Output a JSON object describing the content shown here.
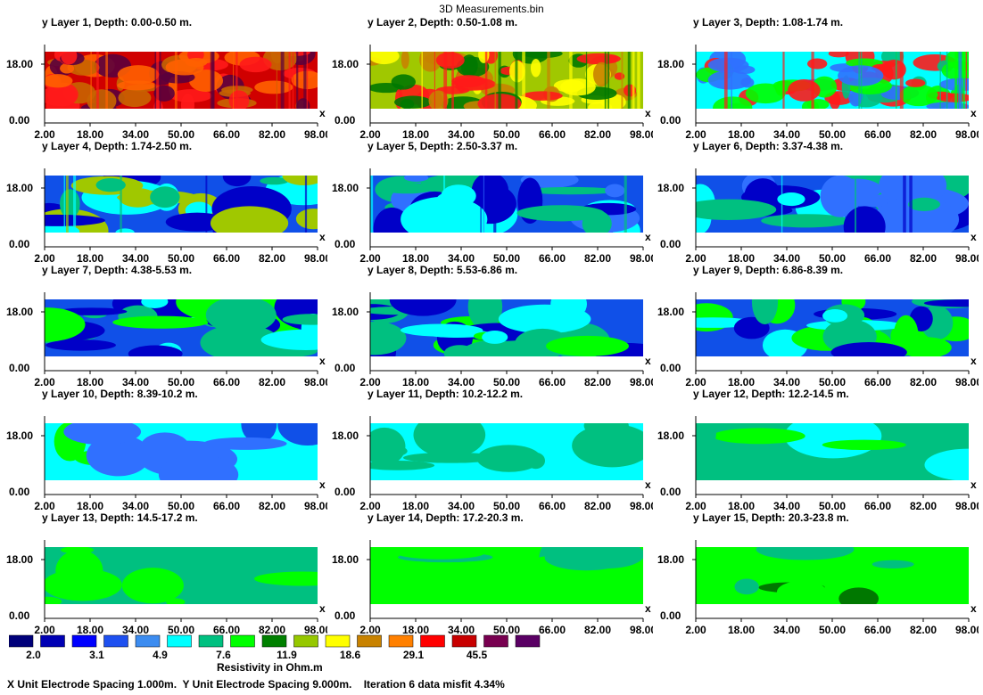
{
  "title": "3D Measurements.bin",
  "y_axis": {
    "label": "y",
    "ticks": [
      "18.00",
      "0.00"
    ]
  },
  "x_axis": {
    "label": "x",
    "ticks": [
      "2.00",
      "18.00",
      "34.00",
      "50.00",
      "66.00",
      "82.00",
      "98.00"
    ]
  },
  "panels": [
    {
      "title": "y Layer 1, Depth: 0.00-0.50 m.",
      "palette": [
        "#d00000",
        "#ff1a1a",
        "#ff6000",
        "#c86400",
        "#5a003c"
      ]
    },
    {
      "title": "y Layer 2, Depth: 0.50-1.08 m.",
      "palette": [
        "#a0c800",
        "#ffff00",
        "#007800",
        "#c88200",
        "#ff1a1a"
      ]
    },
    {
      "title": "y Layer 3, Depth: 1.08-1.74 m.",
      "palette": [
        "#00ffff",
        "#00c080",
        "#3070ff",
        "#00ff00",
        "#ff1a1a"
      ]
    },
    {
      "title": "y Layer 4, Depth: 1.74-2.50 m.",
      "palette": [
        "#1050e8",
        "#00ffff",
        "#00c080",
        "#0000c8",
        "#a0c800"
      ]
    },
    {
      "title": "y Layer 5, Depth: 2.50-3.37 m.",
      "palette": [
        "#1050e8",
        "#00ffff",
        "#0000c8",
        "#00c080",
        "#3070ff"
      ]
    },
    {
      "title": "y Layer 6, Depth: 3.37-4.38 m.",
      "palette": [
        "#1050e8",
        "#00ffff",
        "#0000c8",
        "#00c080",
        "#3070ff"
      ]
    },
    {
      "title": "y Layer 7, Depth: 4.38-5.53 m.",
      "palette": [
        "#1050e8",
        "#00ffff",
        "#0000c8",
        "#00c080",
        "#00ff00"
      ]
    },
    {
      "title": "y Layer 8, Depth: 5.53-6.86 m.",
      "palette": [
        "#1050e8",
        "#00ffff",
        "#0000c8",
        "#00c080",
        "#00ff00"
      ]
    },
    {
      "title": "y Layer 9, Depth: 6.86-8.39 m.",
      "palette": [
        "#1050e8",
        "#00ffff",
        "#0000c8",
        "#00c080",
        "#00ff00"
      ]
    },
    {
      "title": "y Layer 10, Depth: 8.39-10.2 m.",
      "palette": [
        "#00ffff",
        "#1050e8",
        "#00c080",
        "#00ff00",
        "#3070ff"
      ]
    },
    {
      "title": "y Layer 11, Depth: 10.2-12.2 m.",
      "palette": [
        "#00ffff",
        "#00c080",
        "#00c080",
        "#00ffff",
        "#00c080"
      ]
    },
    {
      "title": "y Layer 12, Depth: 12.2-14.5 m.",
      "palette": [
        "#00c080",
        "#00ffff",
        "#00c080",
        "#00ff00",
        "#00c080"
      ]
    },
    {
      "title": "y Layer 13, Depth: 14.5-17.2 m.",
      "palette": [
        "#00c080",
        "#00ff00",
        "#00c080",
        "#00ff00",
        "#00c080"
      ]
    },
    {
      "title": "y Layer 14, Depth: 17.2-20.3 m.",
      "palette": [
        "#00ff00",
        "#00c080",
        "#00ff00",
        "#00c080",
        "#00ff00"
      ]
    },
    {
      "title": "y Layer 15, Depth: 20.3-23.8 m.",
      "palette": [
        "#00ff00",
        "#00c080",
        "#00ff00",
        "#007800",
        "#00ff00"
      ]
    }
  ],
  "legend": {
    "title": "Resistivity in Ohm.m",
    "colors": [
      "#00007a",
      "#0000b4",
      "#0000ff",
      "#1e50f0",
      "#3c8cf0",
      "#00ffff",
      "#00c080",
      "#00ff00",
      "#008000",
      "#96c800",
      "#ffff00",
      "#c88200",
      "#ff8000",
      "#ff0000",
      "#c80000",
      "#780050",
      "#5a0064"
    ],
    "value_labels": [
      {
        "slot": 0,
        "text": "2.0"
      },
      {
        "slot": 2,
        "text": "3.1"
      },
      {
        "slot": 4,
        "text": "4.9"
      },
      {
        "slot": 6,
        "text": "7.6"
      },
      {
        "slot": 8,
        "text": "11.9"
      },
      {
        "slot": 10,
        "text": "18.6"
      },
      {
        "slot": 12,
        "text": "29.1"
      },
      {
        "slot": 14,
        "text": "45.5"
      }
    ]
  },
  "footer": "X Unit Electrode Spacing 1.000m.  Y Unit Electrode Spacing 9.000m.    Iteration 6 data misfit 4.34%"
}
